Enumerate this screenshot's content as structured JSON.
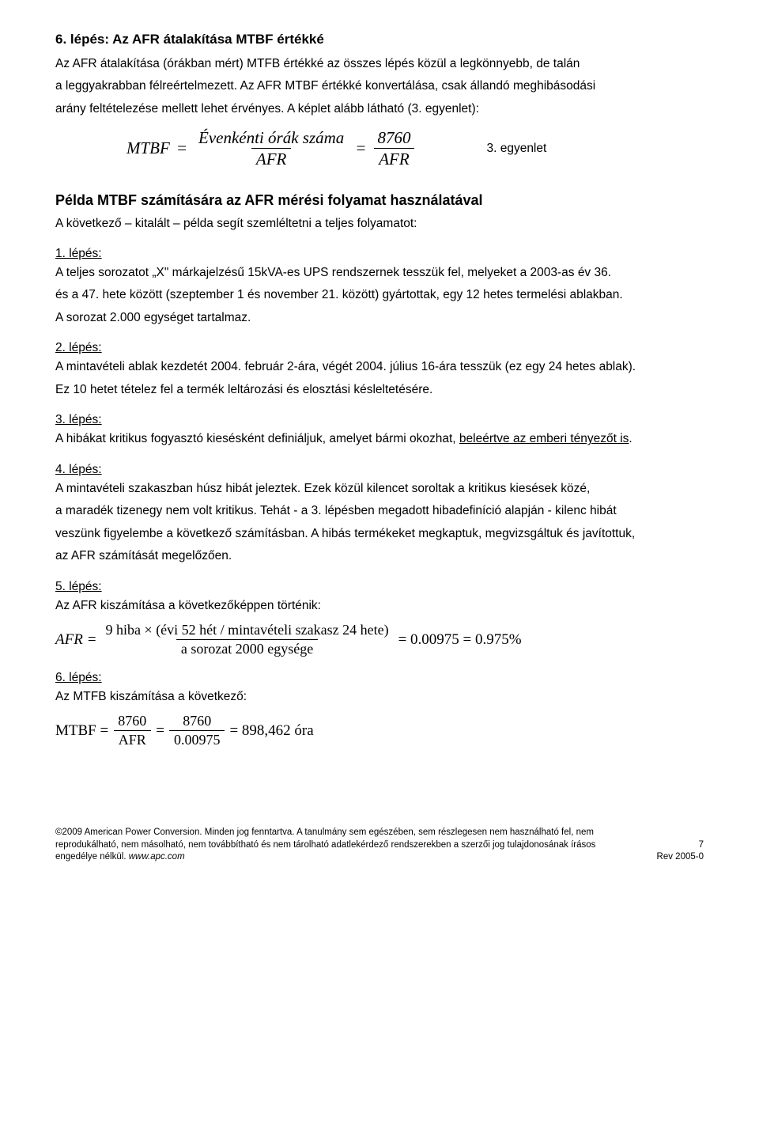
{
  "section6": {
    "title": "6. lépés: Az AFR átalakítása MTBF értékké",
    "p1": "Az AFR átalakítása (órákban mért) MTFB értékké az összes lépés közül a legkönnyebb, de talán",
    "p2": "a leggyakrabban félreértelmezett. Az AFR MTBF értékké konvertálása, csak állandó meghibásodási",
    "p3": "arány feltételezése mellett lehet érvényes. A képlet alább látható (3. egyenlet):",
    "formula": {
      "lhs": "MTBF",
      "eq": "=",
      "num1": "Évenkénti órák száma",
      "den1": "AFR",
      "num2": "8760",
      "den2": "AFR"
    },
    "eq_label": "3. egyenlet"
  },
  "example": {
    "title": "Példa MTBF számítására az AFR mérési folyamat használatával",
    "intro": "A következő – kitalált – példa segít szemléltetni a teljes folyamatot:"
  },
  "steps": {
    "s1": {
      "label": "1. lépés:",
      "l1": "A teljes sorozatot „X\" márkajelzésű 15kVA-es UPS rendszernek tesszük fel, melyeket a 2003-as év 36.",
      "l2": "és a 47. hete között (szeptember 1 és november 21. között) gyártottak, egy 12 hetes termelési ablakban.",
      "l3": "A sorozat 2.000 egységet tartalmaz."
    },
    "s2": {
      "label": "2. lépés:",
      "l1": "A mintavételi ablak kezdetét 2004. február 2-ára, végét 2004. július 16-ára tesszük (ez egy 24 hetes ablak).",
      "l2": "Ez 10 hetet tételez fel a termék leltározási és elosztási késleltetésére."
    },
    "s3": {
      "label": "3. lépés:",
      "l1a": "A hibákat kritikus fogyasztó kiesésként definiáljuk, amelyet bármi okozhat, ",
      "l1b": "beleértve az emberi tényezőt is"
    },
    "s4": {
      "label": "4. lépés:",
      "l1": "A mintavételi szakaszban húsz hibát jeleztek. Ezek közül kilencet soroltak a kritikus kiesések közé,",
      "l2": "a maradék tizenegy nem volt kritikus. Tehát - a 3. lépésben megadott hibadefiníció alapján - kilenc hibát",
      "l3": "veszünk figyelembe a következő számításban. A hibás termékeket megkaptuk, megvizsgáltuk és javítottuk,",
      "l4": "az AFR számítását megelőzően."
    },
    "s5": {
      "label": "5. lépés:",
      "l1": "Az AFR kiszámítása a következőképpen történik:",
      "formula": {
        "lhs": "AFR",
        "num": "9 hiba × (évi 52 hét / mintavételi szakasz 24 hete)",
        "den": "a sorozat 2000 egysége",
        "rhs1": "= 0.00975 = 0.975%"
      }
    },
    "s6": {
      "label": "6. lépés:",
      "l1": "Az MTFB kiszámítása a következő:",
      "formula": {
        "lhs": "MTBF =",
        "num1": "8760",
        "den1": "AFR",
        "num2": "8760",
        "den2": "0.00975",
        "rhs": "= 898,462 óra"
      }
    }
  },
  "footer": {
    "left1": "©2009 American Power Conversion. Minden jog fenntartva. A tanulmány sem egészében, sem részlegesen nem használható fel, nem",
    "left2": "reprodukálható, nem másolható, nem továbbítható és nem tárolható adatlekérdező rendszerekben a szerzői jog tulajdonosának írásos",
    "left3a": "engedélye nélkül. ",
    "left3b": "www.apc.com",
    "right_page": "7",
    "right_rev": "Rev 2005-0"
  }
}
